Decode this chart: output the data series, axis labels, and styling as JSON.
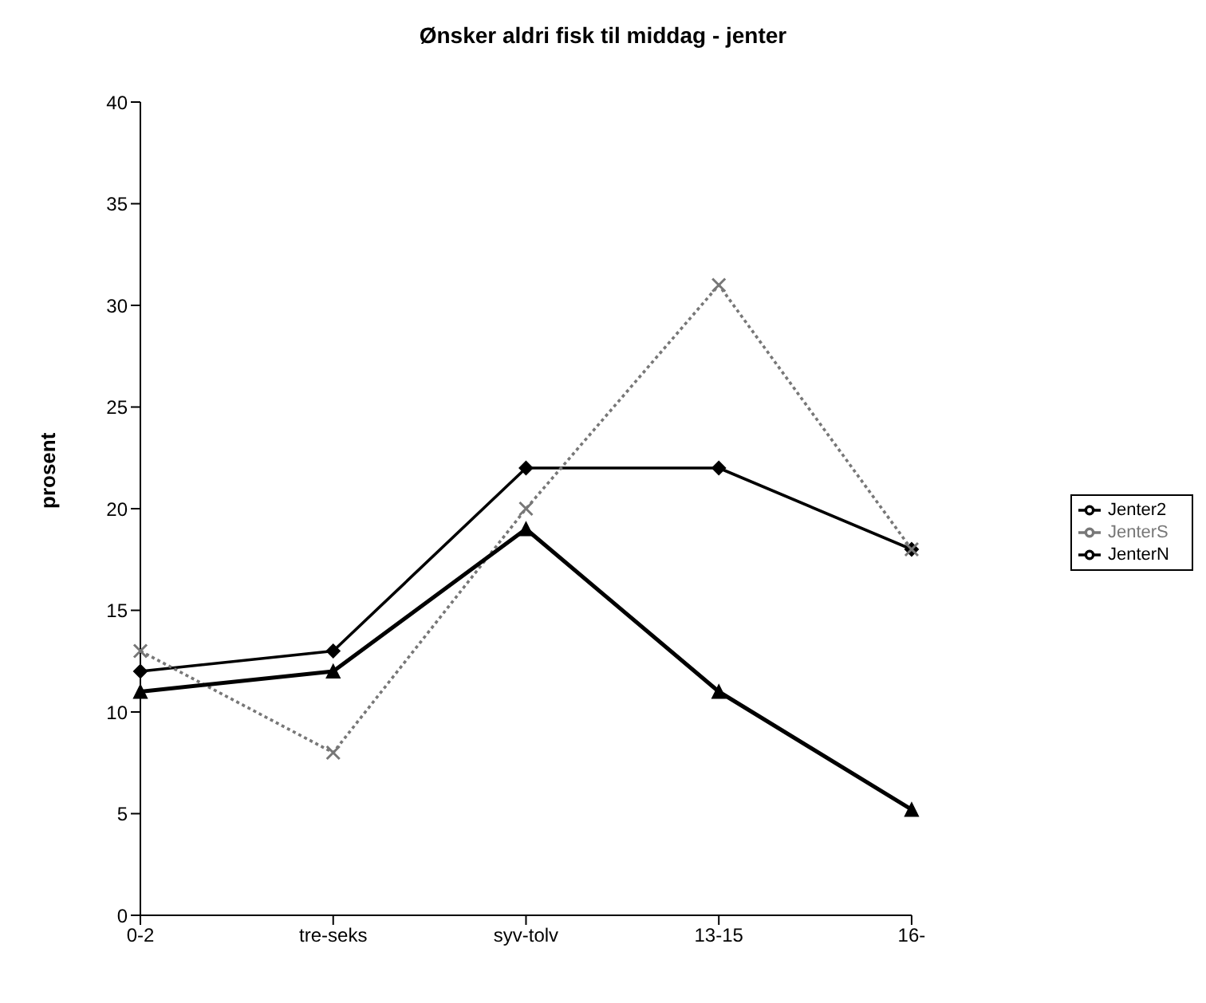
{
  "chart_data": {
    "type": "line",
    "title": "Ønsker aldri fisk til middag - jenter",
    "ylabel": "prosent",
    "categories": [
      "0-2",
      "tre-seks",
      "syv-tolv",
      "13-15",
      "16-"
    ],
    "series": [
      {
        "name": "Jenter2",
        "color": "#000000",
        "values": [
          12,
          13,
          22,
          22,
          18
        ],
        "marker": "diamond",
        "line_style": "solid"
      },
      {
        "name": "JenterS",
        "color": "#777777",
        "values": [
          13,
          8,
          20,
          31,
          18
        ],
        "marker": "cross",
        "line_style": "dotted"
      },
      {
        "name": "JenterN",
        "color": "#000000",
        "values": [
          11,
          12,
          19,
          11,
          5.2
        ],
        "marker": "triangle",
        "line_style": "solid"
      }
    ],
    "ylim": [
      0,
      40
    ],
    "yticks": [
      0,
      5,
      10,
      15,
      20,
      25,
      30,
      35,
      40
    ],
    "grid": false,
    "legend": "right"
  }
}
